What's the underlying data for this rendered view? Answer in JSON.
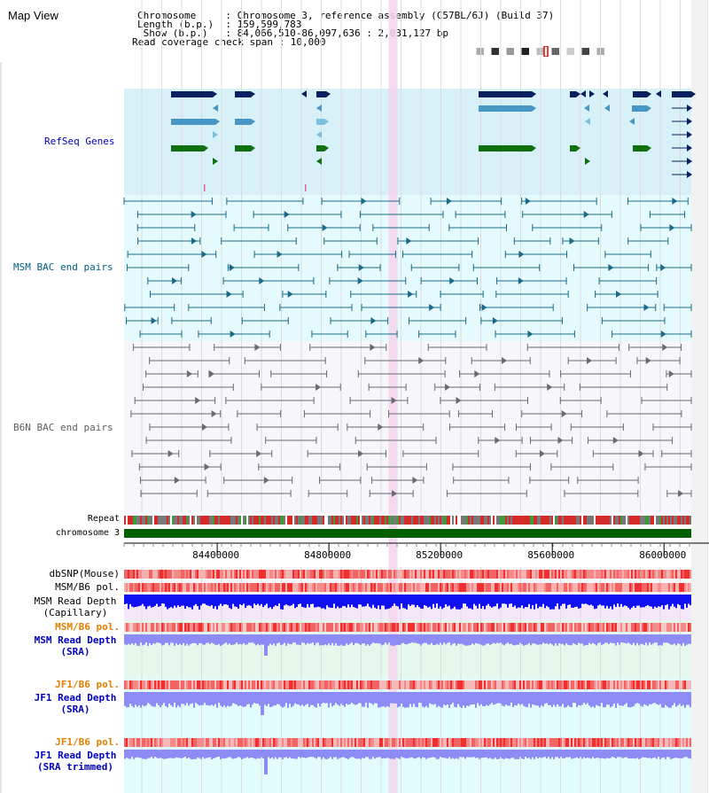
{
  "header": {
    "title": "Map View",
    "info_lines": [
      "Chromosome     : Chromosome 3, reference assembly (C57BL/6J) (Build 37)",
      "Length (b.p.)  : 159,599,783",
      " Show (b.p.)   : 84,066,510-86,097,636 : 2,031,127 bp",
      "Read coverage check span : 10,000"
    ]
  },
  "tracks": {
    "refseq": {
      "label": "RefSeq Genes",
      "color": "#0000c0"
    },
    "msm_bac": {
      "label": "MSM BAC end pairs",
      "color": "#006080"
    },
    "b6n_bac": {
      "label": "B6N BAC end pairs",
      "color": "#606060"
    },
    "repeat": {
      "label": "Repeat"
    },
    "chromosome": {
      "label": "chromosome 3"
    },
    "dbsnp": {
      "label": "dbSNP(Mouse)"
    },
    "msm_b6_pol": {
      "label": "MSM/B6 pol."
    },
    "msm_depth_cap": {
      "line1": "MSM Read Depth",
      "line2": "(Capillary)"
    },
    "msm_b6_pol2": {
      "label": "MSM/B6 pol.",
      "color": "#e08000"
    },
    "msm_depth_sra": {
      "line1": "MSM Read Depth",
      "line2": "(SRA)",
      "color": "#0000c0"
    },
    "jf1_b6_pol": {
      "label": "JF1/B6 pol.",
      "color": "#e08000"
    },
    "jf1_depth_sra": {
      "line1": "JF1 Read Depth",
      "line2": "(SRA)",
      "color": "#0000c0"
    },
    "jf1_b6_pol2": {
      "label": "JF1/B6 pol.",
      "color": "#e08000"
    },
    "jf1_depth_trim": {
      "line1": "JF1 Read Depth",
      "line2": "(SRA trimmed)",
      "color": "#0000c0"
    }
  },
  "axis": {
    "start": 84066510,
    "end": 86097636,
    "ticks": [
      "84400000",
      "84800000",
      "85200000",
      "85600000",
      "86000000"
    ],
    "tick_values": [
      84400000,
      84800000,
      85200000,
      85600000,
      86000000
    ]
  },
  "highlight_bp": 85030000,
  "colors": {
    "refseq_bg": "#d8f0f8",
    "bac_bg": "#e4fafc",
    "b6n_bg": "#f6f6fb",
    "highlight": "#f4d4ec",
    "gene_dark": "#082060",
    "gene_mid": "#4896c4",
    "gene_light": "#7cc0dc",
    "gene_green": "#107010",
    "chrom_bar": "#006000",
    "depth_cap": "#1010f0",
    "depth_sra": "#8c8cf4",
    "pol_light": "#f8b0b0",
    "pol_dark": "#ef3030"
  }
}
